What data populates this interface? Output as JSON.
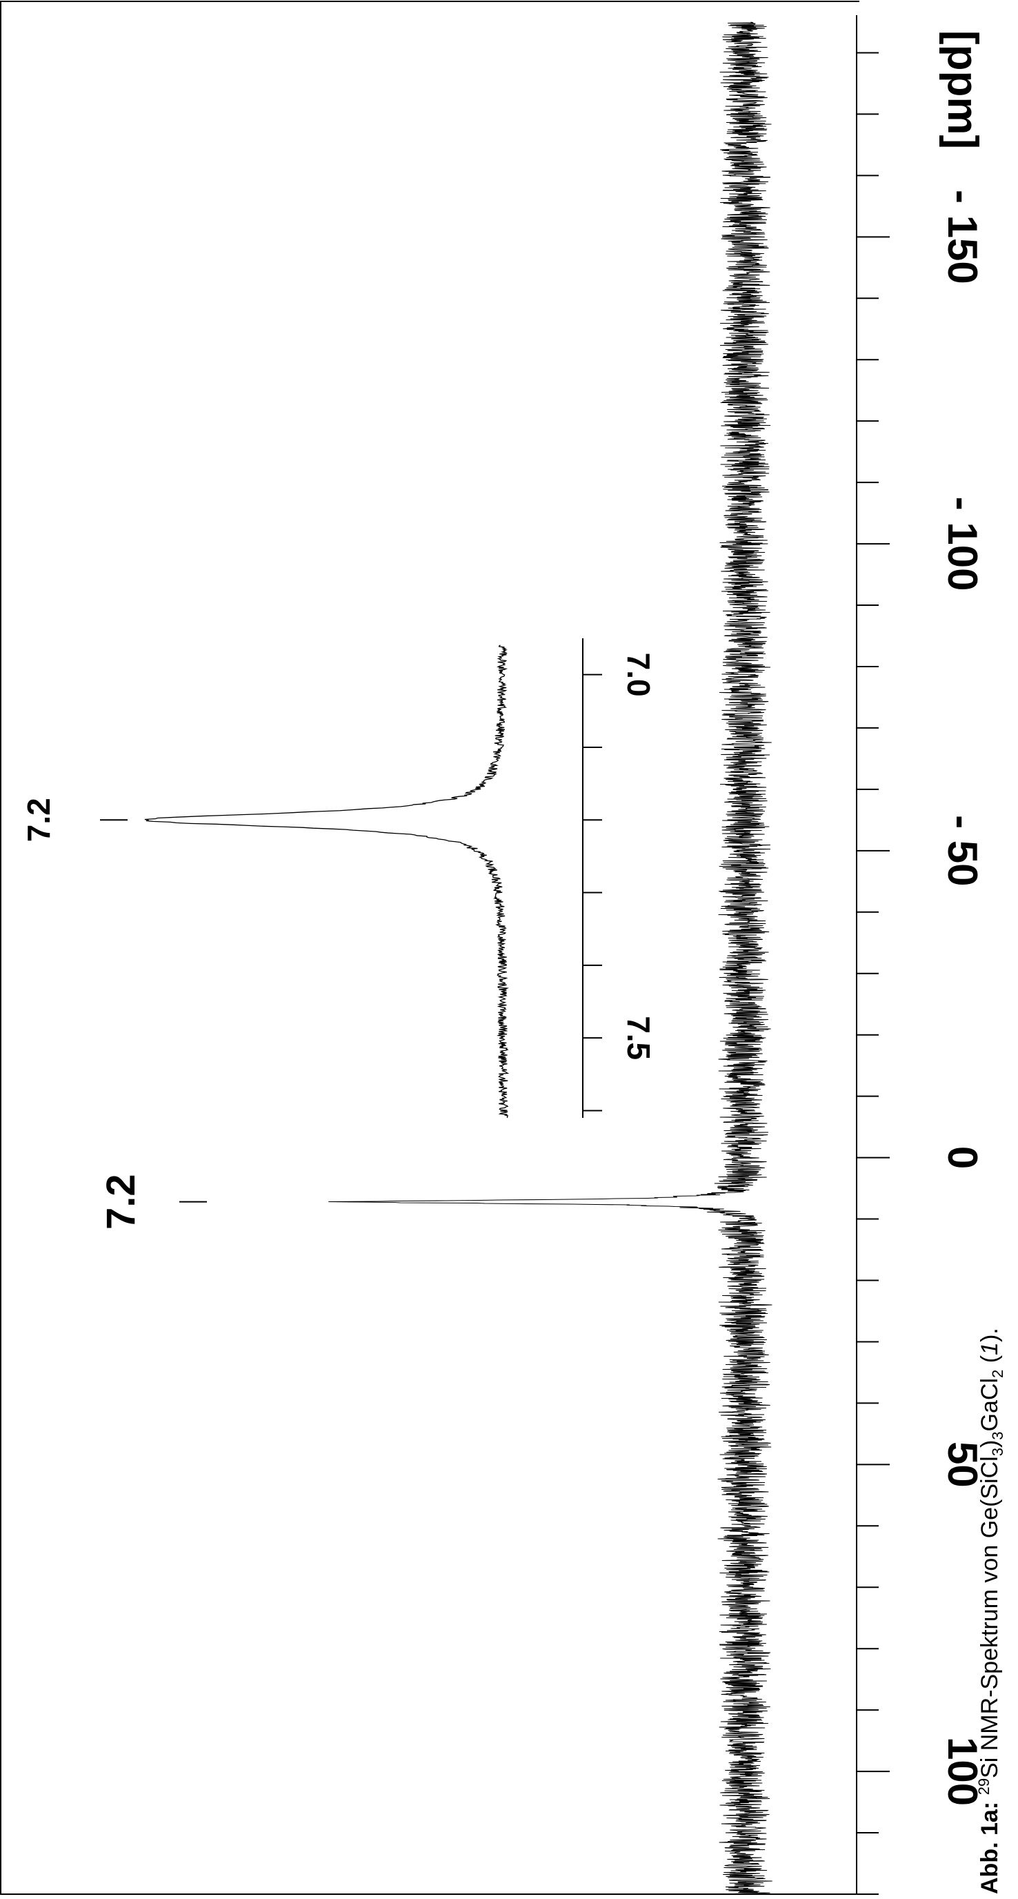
{
  "chart_data": {
    "type": "line",
    "orientation": "rotated-90-clockwise",
    "x_axis": {
      "label": "[ppm]",
      "range": [
        120,
        -185
      ],
      "major_ticks": [
        100,
        50,
        0,
        -50,
        -100,
        -150
      ],
      "major_tick_labels": [
        "100",
        "50",
        "0",
        "- 50",
        "- 100",
        "- 150"
      ],
      "minor_step": 10
    },
    "grid": false,
    "series": [
      {
        "peaks": [
          {
            "position": 7.2,
            "label": "7.2",
            "relative_height": 0.95
          }
        ],
        "noise_level": 0.04,
        "color": "#000000"
      }
    ],
    "inset": {
      "x_range": [
        7.61,
        6.95
      ],
      "major_ticks": [
        7.5,
        7.0
      ],
      "major_tick_labels": [
        "7.5",
        "7.0"
      ],
      "minor_step": 0.1,
      "peak": {
        "position": 7.2,
        "label": "7.2"
      }
    }
  },
  "caption": {
    "prefix": "Abb. 1a:",
    "superscript": "29",
    "text_si": "Si NMR-Spektrum von Ge(SiCl",
    "sub1": "3",
    "text_mid": ")",
    "sub2": "3",
    "text_ga": "GaCl",
    "sub3": "2",
    "text_paren_open": " (",
    "compound_number": "1",
    "text_paren_close": ")."
  }
}
